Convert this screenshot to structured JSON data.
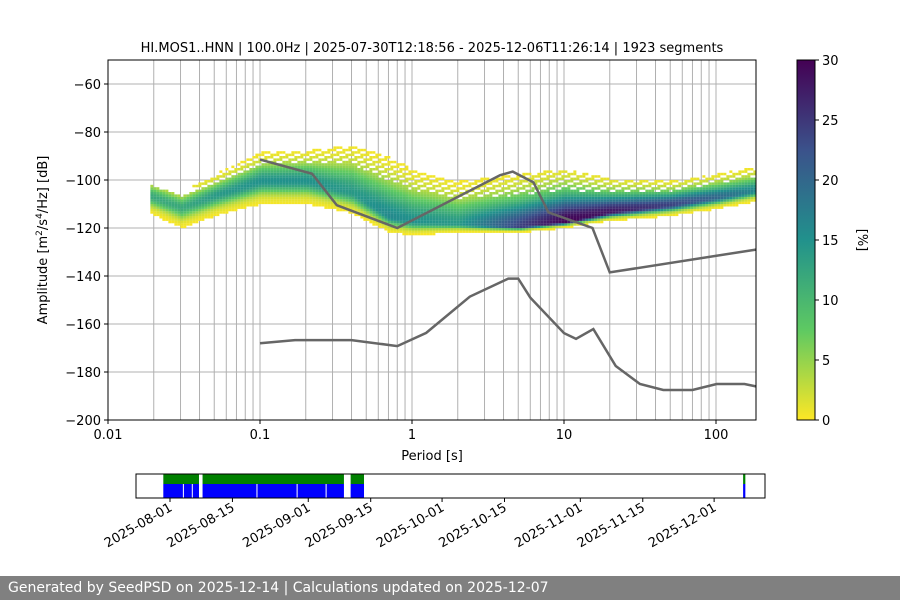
{
  "footer": "Generated by SeedPSD on 2025-12-14 | Calculations updated on 2025-12-07",
  "chart_data": {
    "type": "heatmap",
    "title": "HI.MOS1..HNN | 100.0Hz | 2025-07-30T12:18:56 - 2025-12-06T11:26:14 | 1923 segments",
    "xlabel": "Period [s]",
    "ylabel_parts": [
      "Amplitude [m",
      "2",
      "/s",
      "4",
      "/Hz] [dB]"
    ],
    "xscale": "log",
    "xlim": [
      0.01,
      183
    ],
    "ylim": [
      -200,
      -50
    ],
    "xticks": [
      {
        "v": 0.01,
        "l": "0.01"
      },
      {
        "v": 0.1,
        "l": "0.1"
      },
      {
        "v": 1,
        "l": "1"
      },
      {
        "v": 10,
        "l": "10"
      },
      {
        "v": 100,
        "l": "100"
      }
    ],
    "yticks": [
      -200,
      -180,
      -160,
      -140,
      -120,
      -100,
      -80,
      -60
    ],
    "colorbar": {
      "label": "[%]",
      "range": [
        0,
        30
      ],
      "ticks": [
        0,
        5,
        10,
        15,
        20,
        25,
        30
      ],
      "colormap": "viridis"
    },
    "pdf_mode": {
      "periods": [
        0.02,
        0.03,
        0.05,
        0.1,
        0.2,
        0.4,
        0.7,
        1,
        2,
        5,
        10,
        20,
        50,
        100,
        183
      ],
      "db": [
        -108,
        -112,
        -107,
        -101,
        -101,
        -106,
        -116,
        -118,
        -119,
        -120,
        -118,
        -114,
        -111,
        -108,
        -105
      ],
      "spread_low": [
        7,
        8,
        8,
        9,
        9,
        8,
        6,
        5,
        3,
        2,
        2,
        3,
        4,
        4,
        4
      ],
      "spread_high": [
        8,
        8,
        9,
        12,
        13,
        20,
        25,
        22,
        18,
        22,
        22,
        14,
        10,
        10,
        10
      ],
      "peak_percent": [
        12,
        12,
        14,
        15,
        15,
        14,
        16,
        15,
        14,
        24,
        30,
        28,
        24,
        20,
        16
      ]
    },
    "noise_models": [
      {
        "name": "NHNM",
        "color": "#666666",
        "points": [
          [
            0.1,
            -91.5
          ],
          [
            0.22,
            -97.4
          ],
          [
            0.32,
            -110.5
          ],
          [
            0.8,
            -120
          ],
          [
            3.8,
            -98
          ],
          [
            4.6,
            -96.5
          ],
          [
            6.3,
            -101
          ],
          [
            7.9,
            -113.5
          ],
          [
            15.4,
            -120
          ],
          [
            20,
            -138.5
          ],
          [
            183,
            -129
          ]
        ]
      },
      {
        "name": "NLNM",
        "color": "#666666",
        "points": [
          [
            0.1,
            -168
          ],
          [
            0.17,
            -166.7
          ],
          [
            0.4,
            -166.7
          ],
          [
            0.8,
            -169.2
          ],
          [
            1.24,
            -163.7
          ],
          [
            2.4,
            -148.6
          ],
          [
            4.3,
            -141.1
          ],
          [
            5,
            -141.1
          ],
          [
            6,
            -149
          ],
          [
            10,
            -163.8
          ],
          [
            12,
            -166.2
          ],
          [
            15.6,
            -162.1
          ],
          [
            21.9,
            -177.5
          ],
          [
            31.6,
            -185
          ],
          [
            45,
            -187.5
          ],
          [
            70,
            -187.5
          ],
          [
            101,
            -185
          ],
          [
            154,
            -185
          ],
          [
            183,
            -186
          ]
        ]
      }
    ],
    "timeline": {
      "date_ticks": [
        "2025-08-01",
        "2025-08-15",
        "2025-09-01",
        "2025-09-15",
        "2025-10-01",
        "2025-10-15",
        "2025-11-01",
        "2025-11-15",
        "2025-12-01"
      ],
      "data_color": "#0000ff",
      "used_color": "#008000",
      "segments_days": [
        [
          -1.5,
          6.5
        ],
        [
          7.3,
          39
        ],
        [
          40.5,
          43.5
        ],
        [
          128.5,
          129
        ]
      ],
      "gaps_days": [
        3,
        5,
        19.5,
        28.5,
        35
      ]
    }
  }
}
